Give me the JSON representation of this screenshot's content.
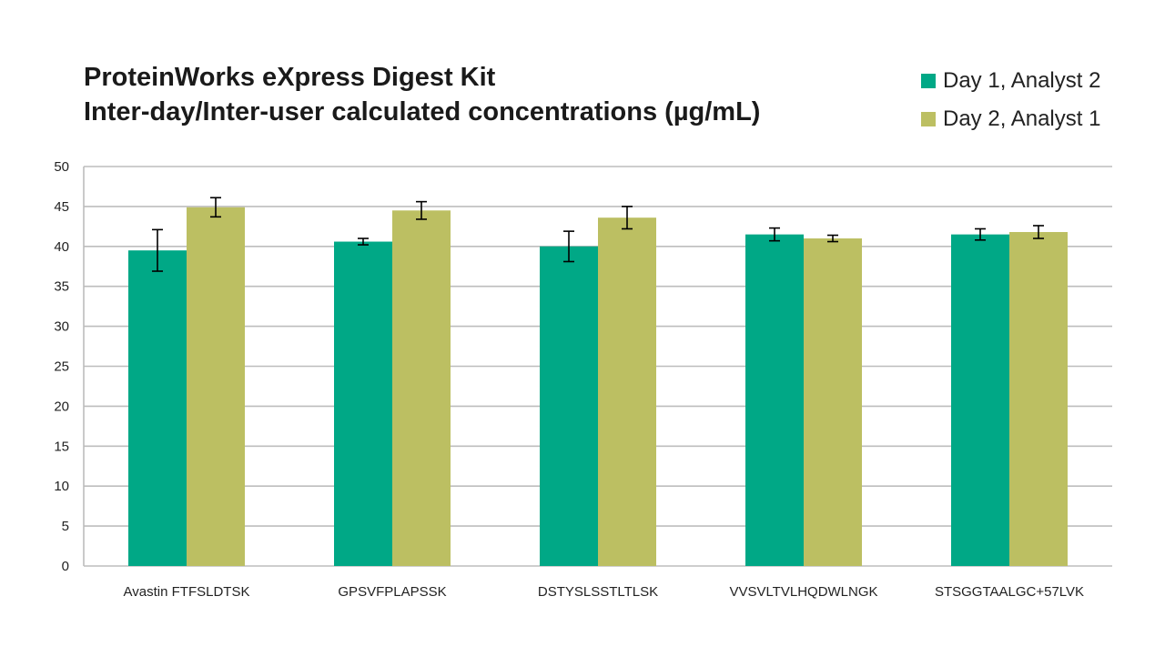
{
  "title": {
    "line1": "ProteinWorks eXpress Digest Kit",
    "line2": "Inter-day/Inter-user calculated concentrations (µg/mL)"
  },
  "legend": [
    {
      "label": "Day 1, Analyst 2",
      "color": "#00a886"
    },
    {
      "label": "Day 2, Analyst 1",
      "color": "#bcbf62"
    }
  ],
  "chart_data": {
    "type": "bar",
    "title": "ProteinWorks eXpress Digest Kit Inter-day/Inter-user calculated concentrations (µg/mL)",
    "xlabel": "",
    "ylabel": "",
    "ylim": [
      0,
      50
    ],
    "yticks": [
      0,
      5,
      10,
      15,
      20,
      25,
      30,
      35,
      40,
      45,
      50
    ],
    "grid": true,
    "legend_position": "top-right",
    "categories": [
      "Avastin FTFSLDTSK",
      "GPSVFPLAPSSK",
      "DSTYSLSSTLTLSK",
      "VVSVLTVLHQDWLNGK",
      "STSGGTAALGC+57LVK"
    ],
    "series": [
      {
        "name": "Day 1, Analyst 2",
        "color": "#00a886",
        "values": [
          39.5,
          40.6,
          40.0,
          41.5,
          41.5
        ],
        "errors": [
          2.6,
          0.4,
          1.9,
          0.8,
          0.7
        ]
      },
      {
        "name": "Day 2, Analyst 1",
        "color": "#bcbf62",
        "values": [
          44.9,
          44.5,
          43.6,
          41.0,
          41.8
        ],
        "errors": [
          1.2,
          1.1,
          1.4,
          0.4,
          0.8
        ]
      }
    ]
  }
}
